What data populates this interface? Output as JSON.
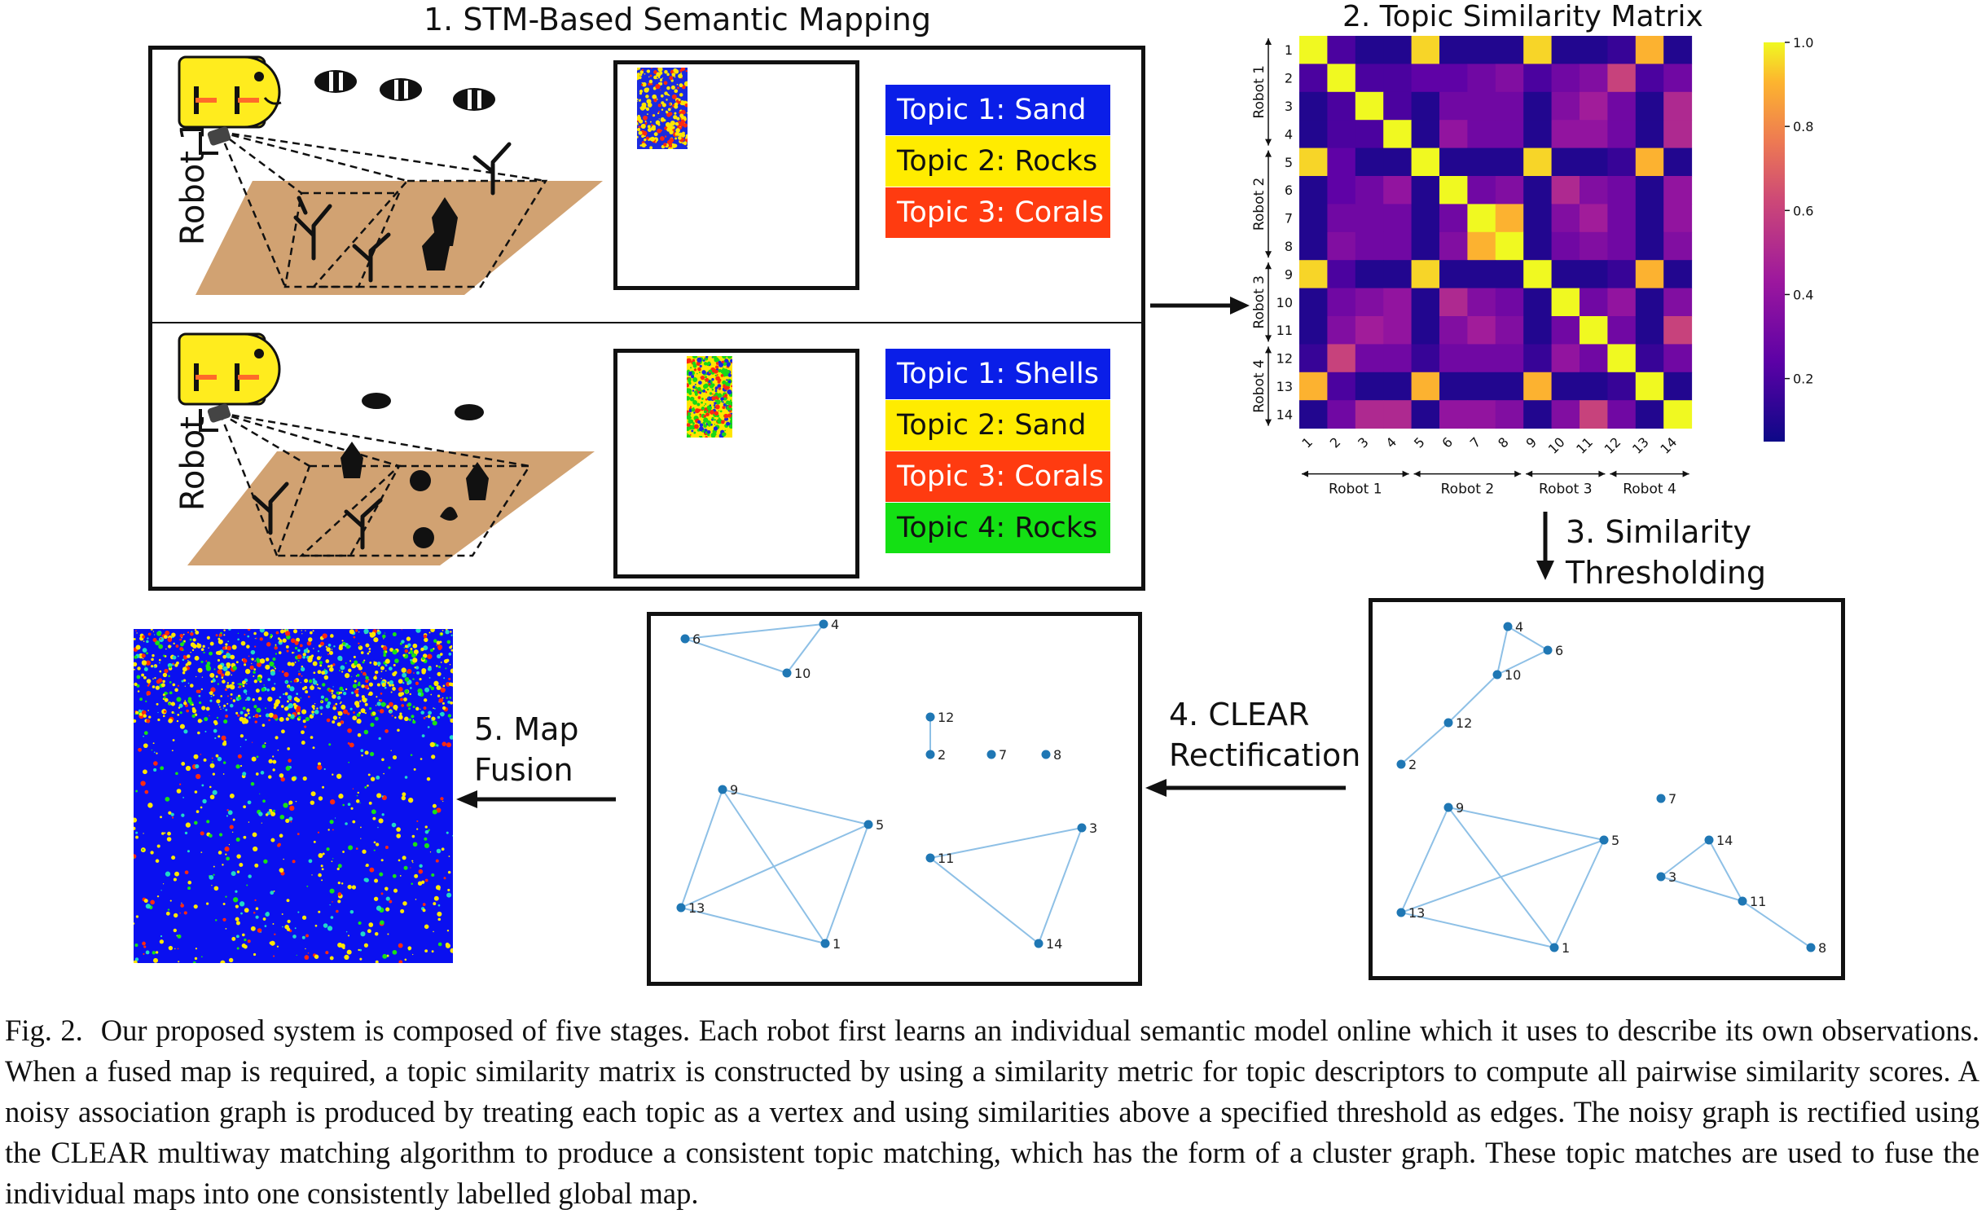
{
  "stage1": {
    "title": "1. STM-Based Semantic Mapping",
    "robots": [
      {
        "label": "Robot 1",
        "topics": [
          {
            "text": "Topic 1: Sand",
            "color": "#0a1ee8",
            "text_color": "#ffffff"
          },
          {
            "text": "Topic 2: Rocks",
            "color": "#ffec00",
            "text_color": "#111111"
          },
          {
            "text": "Topic 3: Corals",
            "color": "#ff3b10",
            "text_color": "#ffffff"
          }
        ]
      },
      {
        "label": "Robot 2",
        "topics": [
          {
            "text": "Topic 1: Shells",
            "color": "#0a1ee8",
            "text_color": "#ffffff"
          },
          {
            "text": "Topic 2: Sand",
            "color": "#ffec00",
            "text_color": "#111111"
          },
          {
            "text": "Topic 3: Corals",
            "color": "#ff3b10",
            "text_color": "#ffffff"
          },
          {
            "text": "Topic 4: Rocks",
            "color": "#14e014",
            "text_color": "#111111"
          }
        ]
      }
    ]
  },
  "stage2": {
    "title": "2. Topic Similarity Matrix",
    "row_groups": [
      "Robot 1",
      "Robot 2",
      "Robot 3",
      "Robot 4"
    ],
    "col_groups": [
      "Robot 1",
      "Robot 2",
      "Robot 3",
      "Robot 4"
    ],
    "colorbar_ticks": [
      "1.0",
      "0.8",
      "0.6",
      "0.4",
      "0.2"
    ]
  },
  "stage3": {
    "line1": "3. Similarity",
    "line2": "Thresholding"
  },
  "stage4": {
    "line1": "4. CLEAR",
    "line2": "Rectification"
  },
  "stage5": {
    "line1": "5. Map",
    "line2": "Fusion"
  },
  "chart_data": {
    "type": "heatmap",
    "title": "2. Topic Similarity Matrix",
    "x_tick_labels": [
      "1",
      "2",
      "3",
      "4",
      "5",
      "6",
      "7",
      "8",
      "9",
      "10",
      "11",
      "12",
      "13",
      "14"
    ],
    "y_tick_labels": [
      "1",
      "2",
      "3",
      "4",
      "5",
      "6",
      "7",
      "8",
      "9",
      "10",
      "11",
      "12",
      "13",
      "14"
    ],
    "x_group_labels": [
      "Robot 1",
      "Robot 2",
      "Robot 3",
      "Robot 4"
    ],
    "y_group_labels": [
      "Robot 1",
      "Robot 2",
      "Robot 3",
      "Robot 4"
    ],
    "colorscale": "plasma",
    "vrange": [
      0.05,
      1.0
    ],
    "colorbar_ticks": [
      1.0,
      0.8,
      0.6,
      0.4,
      0.2
    ],
    "matrix": [
      [
        1.0,
        0.2,
        0.1,
        0.1,
        0.95,
        0.1,
        0.1,
        0.1,
        0.95,
        0.1,
        0.1,
        0.15,
        0.9,
        0.1
      ],
      [
        0.2,
        1.0,
        0.2,
        0.2,
        0.25,
        0.25,
        0.3,
        0.35,
        0.2,
        0.3,
        0.35,
        0.6,
        0.2,
        0.3
      ],
      [
        0.1,
        0.2,
        1.0,
        0.2,
        0.1,
        0.3,
        0.3,
        0.3,
        0.1,
        0.35,
        0.45,
        0.3,
        0.1,
        0.5
      ],
      [
        0.1,
        0.2,
        0.2,
        1.0,
        0.1,
        0.4,
        0.3,
        0.3,
        0.1,
        0.4,
        0.4,
        0.3,
        0.1,
        0.5
      ],
      [
        0.95,
        0.25,
        0.1,
        0.1,
        1.0,
        0.1,
        0.1,
        0.1,
        0.95,
        0.1,
        0.1,
        0.15,
        0.9,
        0.1
      ],
      [
        0.1,
        0.25,
        0.3,
        0.4,
        0.1,
        1.0,
        0.3,
        0.35,
        0.1,
        0.5,
        0.35,
        0.3,
        0.1,
        0.4
      ],
      [
        0.1,
        0.3,
        0.3,
        0.3,
        0.1,
        0.3,
        1.0,
        0.9,
        0.1,
        0.35,
        0.45,
        0.3,
        0.1,
        0.4
      ],
      [
        0.1,
        0.35,
        0.3,
        0.3,
        0.1,
        0.35,
        0.9,
        1.0,
        0.1,
        0.3,
        0.35,
        0.3,
        0.1,
        0.35
      ],
      [
        0.95,
        0.2,
        0.1,
        0.1,
        0.95,
        0.1,
        0.1,
        0.1,
        1.0,
        0.1,
        0.1,
        0.15,
        0.9,
        0.1
      ],
      [
        0.1,
        0.3,
        0.35,
        0.4,
        0.1,
        0.5,
        0.35,
        0.3,
        0.1,
        1.0,
        0.3,
        0.4,
        0.1,
        0.35
      ],
      [
        0.1,
        0.35,
        0.45,
        0.4,
        0.1,
        0.35,
        0.45,
        0.35,
        0.1,
        0.3,
        1.0,
        0.3,
        0.1,
        0.6
      ],
      [
        0.15,
        0.6,
        0.3,
        0.3,
        0.15,
        0.3,
        0.3,
        0.3,
        0.15,
        0.4,
        0.3,
        1.0,
        0.15,
        0.3
      ],
      [
        0.9,
        0.2,
        0.1,
        0.1,
        0.9,
        0.1,
        0.1,
        0.1,
        0.9,
        0.1,
        0.1,
        0.15,
        1.0,
        0.1
      ],
      [
        0.1,
        0.3,
        0.5,
        0.5,
        0.1,
        0.4,
        0.4,
        0.35,
        0.1,
        0.35,
        0.6,
        0.3,
        0.1,
        1.0
      ]
    ]
  },
  "graph_threshold": {
    "nodes": [
      "4",
      "6",
      "10",
      "12",
      "2",
      "7",
      "9",
      "5",
      "14",
      "3",
      "11",
      "13",
      "1",
      "8"
    ],
    "edges": [
      [
        "4",
        "6"
      ],
      [
        "4",
        "10"
      ],
      [
        "6",
        "10"
      ],
      [
        "10",
        "12"
      ],
      [
        "12",
        "2"
      ],
      [
        "9",
        "5"
      ],
      [
        "9",
        "13"
      ],
      [
        "9",
        "1"
      ],
      [
        "5",
        "13"
      ],
      [
        "5",
        "1"
      ],
      [
        "13",
        "1"
      ],
      [
        "14",
        "3"
      ],
      [
        "14",
        "11"
      ],
      [
        "3",
        "11"
      ],
      [
        "11",
        "8"
      ]
    ]
  },
  "graph_clear": {
    "nodes": [
      "4",
      "6",
      "10",
      "12",
      "2",
      "7",
      "8",
      "9",
      "5",
      "13",
      "1",
      "11",
      "3",
      "14"
    ],
    "edges": [
      [
        "4",
        "6"
      ],
      [
        "4",
        "10"
      ],
      [
        "6",
        "10"
      ],
      [
        "12",
        "2"
      ],
      [
        "9",
        "5"
      ],
      [
        "9",
        "13"
      ],
      [
        "9",
        "1"
      ],
      [
        "5",
        "13"
      ],
      [
        "5",
        "1"
      ],
      [
        "13",
        "1"
      ],
      [
        "11",
        "3"
      ],
      [
        "11",
        "14"
      ],
      [
        "3",
        "14"
      ]
    ]
  },
  "caption": {
    "fig": "Fig. 2.",
    "text": "Our proposed system is composed of five stages. Each robot first learns an individual semantic model online which it uses to describe its own observations. When a fused map is required, a topic similarity matrix is constructed by using a similarity metric for topic descriptors to compute all pairwise similarity scores. A noisy association graph is produced by treating each topic as a vertex and using similarities above a specified threshold as edges. The noisy graph is rectified using the CLEAR multiway matching algorithm to produce a consistent topic matching, which has the form of a cluster graph. These topic matches are used to fuse the individual maps into one consistently labelled global map."
  }
}
